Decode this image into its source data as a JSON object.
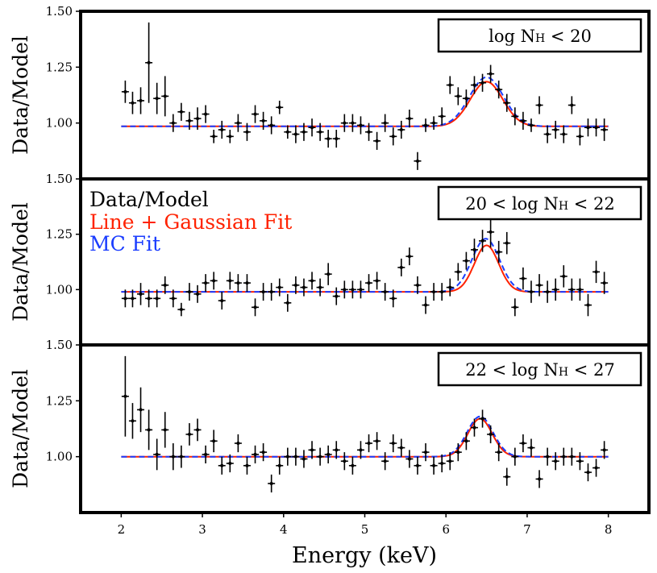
{
  "figure": {
    "xlabel": "Energy (keV)",
    "ylabel": "Data/Model",
    "x_ticks": [
      "2",
      "3",
      "4",
      "5",
      "6",
      "7",
      "8"
    ],
    "xlim": [
      1.5,
      8.5
    ],
    "legend": {
      "placement": "top-left of middle panel",
      "entries": [
        {
          "label": "Data/Model",
          "color": "#000000"
        },
        {
          "label": "Line + Gaussian Fit",
          "color": "#ff2200"
        },
        {
          "label": "MC Fit",
          "color": "#1a3cff"
        }
      ]
    },
    "colors": {
      "data": "#000000",
      "gauss_fit": "#ff2200",
      "mc_fit": "#1a3cff"
    }
  },
  "chart_data": [
    {
      "type": "scatter",
      "panel": "top",
      "title": "log N_H < 20",
      "label_parts": {
        "pre": "log N",
        "sub": "H",
        "post": " < 20"
      },
      "ylabel": "Data/Model",
      "y_ticks": [
        "1.00",
        "1.25",
        "1.50"
      ],
      "ylim": [
        0.75,
        1.5
      ],
      "gauss_fit": {
        "baseline": 0.985,
        "amp": 0.2,
        "center": 6.5,
        "sigma": 0.2
      },
      "mc_fit": {
        "baseline": 0.985,
        "amp": 0.22,
        "center": 6.5,
        "sigma": 0.21
      },
      "points": [
        {
          "x": 2.05,
          "y": 1.14,
          "yerr": 0.05
        },
        {
          "x": 2.14,
          "y": 1.09,
          "yerr": 0.05
        },
        {
          "x": 2.24,
          "y": 1.1,
          "yerr": 0.06
        },
        {
          "x": 2.34,
          "y": 1.27,
          "yerr": 0.18
        },
        {
          "x": 2.44,
          "y": 1.11,
          "yerr": 0.07
        },
        {
          "x": 2.54,
          "y": 1.12,
          "yerr": 0.09
        },
        {
          "x": 2.64,
          "y": 1.0,
          "yerr": 0.04
        },
        {
          "x": 2.74,
          "y": 1.05,
          "yerr": 0.04
        },
        {
          "x": 2.84,
          "y": 1.01,
          "yerr": 0.04
        },
        {
          "x": 2.94,
          "y": 1.02,
          "yerr": 0.05
        },
        {
          "x": 3.04,
          "y": 1.04,
          "yerr": 0.04
        },
        {
          "x": 3.14,
          "y": 0.94,
          "yerr": 0.03
        },
        {
          "x": 3.24,
          "y": 0.97,
          "yerr": 0.04
        },
        {
          "x": 3.34,
          "y": 0.94,
          "yerr": 0.03
        },
        {
          "x": 3.44,
          "y": 1.0,
          "yerr": 0.04
        },
        {
          "x": 3.55,
          "y": 0.96,
          "yerr": 0.04
        },
        {
          "x": 3.65,
          "y": 1.04,
          "yerr": 0.04
        },
        {
          "x": 3.75,
          "y": 1.01,
          "yerr": 0.04
        },
        {
          "x": 3.85,
          "y": 0.99,
          "yerr": 0.04
        },
        {
          "x": 3.95,
          "y": 1.07,
          "yerr": 0.03
        },
        {
          "x": 4.05,
          "y": 0.96,
          "yerr": 0.03
        },
        {
          "x": 4.15,
          "y": 0.95,
          "yerr": 0.04
        },
        {
          "x": 4.25,
          "y": 0.96,
          "yerr": 0.04
        },
        {
          "x": 4.35,
          "y": 0.98,
          "yerr": 0.04
        },
        {
          "x": 4.45,
          "y": 0.96,
          "yerr": 0.04
        },
        {
          "x": 4.55,
          "y": 0.93,
          "yerr": 0.04
        },
        {
          "x": 4.65,
          "y": 0.93,
          "yerr": 0.04
        },
        {
          "x": 4.75,
          "y": 1.0,
          "yerr": 0.04
        },
        {
          "x": 4.85,
          "y": 1.0,
          "yerr": 0.04
        },
        {
          "x": 4.95,
          "y": 0.99,
          "yerr": 0.04
        },
        {
          "x": 5.05,
          "y": 0.96,
          "yerr": 0.04
        },
        {
          "x": 5.15,
          "y": 0.92,
          "yerr": 0.04
        },
        {
          "x": 5.25,
          "y": 1.0,
          "yerr": 0.04
        },
        {
          "x": 5.35,
          "y": 0.94,
          "yerr": 0.04
        },
        {
          "x": 5.45,
          "y": 0.97,
          "yerr": 0.04
        },
        {
          "x": 5.55,
          "y": 1.02,
          "yerr": 0.04
        },
        {
          "x": 5.65,
          "y": 0.83,
          "yerr": 0.04
        },
        {
          "x": 5.75,
          "y": 0.99,
          "yerr": 0.03
        },
        {
          "x": 5.85,
          "y": 1.0,
          "yerr": 0.03
        },
        {
          "x": 5.95,
          "y": 1.03,
          "yerr": 0.04
        },
        {
          "x": 6.05,
          "y": 1.17,
          "yerr": 0.04
        },
        {
          "x": 6.15,
          "y": 1.12,
          "yerr": 0.04
        },
        {
          "x": 6.25,
          "y": 1.11,
          "yerr": 0.04
        },
        {
          "x": 6.35,
          "y": 1.17,
          "yerr": 0.04
        },
        {
          "x": 6.45,
          "y": 1.18,
          "yerr": 0.04
        },
        {
          "x": 6.55,
          "y": 1.22,
          "yerr": 0.04
        },
        {
          "x": 6.65,
          "y": 1.15,
          "yerr": 0.04
        },
        {
          "x": 6.75,
          "y": 1.09,
          "yerr": 0.04
        },
        {
          "x": 6.85,
          "y": 1.03,
          "yerr": 0.04
        },
        {
          "x": 6.95,
          "y": 1.01,
          "yerr": 0.04
        },
        {
          "x": 7.05,
          "y": 0.99,
          "yerr": 0.03
        },
        {
          "x": 7.15,
          "y": 1.08,
          "yerr": 0.04
        },
        {
          "x": 7.25,
          "y": 0.95,
          "yerr": 0.04
        },
        {
          "x": 7.35,
          "y": 0.97,
          "yerr": 0.04
        },
        {
          "x": 7.45,
          "y": 0.95,
          "yerr": 0.04
        },
        {
          "x": 7.55,
          "y": 1.08,
          "yerr": 0.04
        },
        {
          "x": 7.65,
          "y": 0.94,
          "yerr": 0.04
        },
        {
          "x": 7.75,
          "y": 0.98,
          "yerr": 0.04
        },
        {
          "x": 7.85,
          "y": 0.98,
          "yerr": 0.04
        },
        {
          "x": 7.95,
          "y": 0.97,
          "yerr": 0.05
        }
      ]
    },
    {
      "type": "scatter",
      "panel": "middle",
      "title": "20 < log N_H < 22",
      "label_parts": {
        "pre": "20 < log N",
        "sub": "H",
        "post": " < 22"
      },
      "ylabel": "Data/Model",
      "y_ticks": [
        "1.00",
        "1.25",
        "1.50"
      ],
      "ylim": [
        0.75,
        1.5
      ],
      "gauss_fit": {
        "baseline": 0.99,
        "amp": 0.21,
        "center": 6.5,
        "sigma": 0.15
      },
      "mc_fit": {
        "baseline": 0.99,
        "amp": 0.24,
        "center": 6.49,
        "sigma": 0.17
      },
      "points": [
        {
          "x": 2.05,
          "y": 0.96,
          "yerr": 0.04
        },
        {
          "x": 2.14,
          "y": 0.96,
          "yerr": 0.04
        },
        {
          "x": 2.24,
          "y": 0.98,
          "yerr": 0.05
        },
        {
          "x": 2.34,
          "y": 0.96,
          "yerr": 0.04
        },
        {
          "x": 2.44,
          "y": 0.96,
          "yerr": 0.04
        },
        {
          "x": 2.54,
          "y": 1.02,
          "yerr": 0.04
        },
        {
          "x": 2.64,
          "y": 0.96,
          "yerr": 0.04
        },
        {
          "x": 2.74,
          "y": 0.91,
          "yerr": 0.03
        },
        {
          "x": 2.84,
          "y": 0.99,
          "yerr": 0.04
        },
        {
          "x": 2.94,
          "y": 0.98,
          "yerr": 0.04
        },
        {
          "x": 3.04,
          "y": 1.03,
          "yerr": 0.04
        },
        {
          "x": 3.14,
          "y": 1.04,
          "yerr": 0.04
        },
        {
          "x": 3.24,
          "y": 0.95,
          "yerr": 0.04
        },
        {
          "x": 3.34,
          "y": 1.04,
          "yerr": 0.04
        },
        {
          "x": 3.44,
          "y": 1.03,
          "yerr": 0.04
        },
        {
          "x": 3.55,
          "y": 1.03,
          "yerr": 0.04
        },
        {
          "x": 3.65,
          "y": 0.92,
          "yerr": 0.04
        },
        {
          "x": 3.75,
          "y": 0.99,
          "yerr": 0.04
        },
        {
          "x": 3.85,
          "y": 0.99,
          "yerr": 0.04
        },
        {
          "x": 3.95,
          "y": 1.01,
          "yerr": 0.04
        },
        {
          "x": 4.05,
          "y": 0.94,
          "yerr": 0.04
        },
        {
          "x": 4.15,
          "y": 1.02,
          "yerr": 0.04
        },
        {
          "x": 4.25,
          "y": 1.01,
          "yerr": 0.04
        },
        {
          "x": 4.35,
          "y": 1.04,
          "yerr": 0.04
        },
        {
          "x": 4.45,
          "y": 1.01,
          "yerr": 0.04
        },
        {
          "x": 4.55,
          "y": 1.07,
          "yerr": 0.05
        },
        {
          "x": 4.65,
          "y": 0.97,
          "yerr": 0.04
        },
        {
          "x": 4.75,
          "y": 1.0,
          "yerr": 0.04
        },
        {
          "x": 4.85,
          "y": 1.0,
          "yerr": 0.04
        },
        {
          "x": 4.95,
          "y": 1.0,
          "yerr": 0.04
        },
        {
          "x": 5.05,
          "y": 1.03,
          "yerr": 0.04
        },
        {
          "x": 5.15,
          "y": 1.04,
          "yerr": 0.04
        },
        {
          "x": 5.25,
          "y": 0.99,
          "yerr": 0.04
        },
        {
          "x": 5.35,
          "y": 0.96,
          "yerr": 0.04
        },
        {
          "x": 5.45,
          "y": 1.1,
          "yerr": 0.04
        },
        {
          "x": 5.55,
          "y": 1.15,
          "yerr": 0.04
        },
        {
          "x": 5.65,
          "y": 1.02,
          "yerr": 0.04
        },
        {
          "x": 5.75,
          "y": 0.93,
          "yerr": 0.04
        },
        {
          "x": 5.85,
          "y": 0.99,
          "yerr": 0.04
        },
        {
          "x": 5.95,
          "y": 0.99,
          "yerr": 0.04
        },
        {
          "x": 6.05,
          "y": 1.01,
          "yerr": 0.04
        },
        {
          "x": 6.15,
          "y": 1.08,
          "yerr": 0.04
        },
        {
          "x": 6.25,
          "y": 1.13,
          "yerr": 0.04
        },
        {
          "x": 6.35,
          "y": 1.18,
          "yerr": 0.05
        },
        {
          "x": 6.45,
          "y": 1.22,
          "yerr": 0.05
        },
        {
          "x": 6.55,
          "y": 1.26,
          "yerr": 0.07
        },
        {
          "x": 6.65,
          "y": 1.17,
          "yerr": 0.05
        },
        {
          "x": 6.75,
          "y": 1.21,
          "yerr": 0.05
        },
        {
          "x": 6.85,
          "y": 0.92,
          "yerr": 0.04
        },
        {
          "x": 6.95,
          "y": 1.05,
          "yerr": 0.05
        },
        {
          "x": 7.05,
          "y": 0.99,
          "yerr": 0.05
        },
        {
          "x": 7.15,
          "y": 1.02,
          "yerr": 0.05
        },
        {
          "x": 7.25,
          "y": 0.99,
          "yerr": 0.05
        },
        {
          "x": 7.35,
          "y": 1.0,
          "yerr": 0.05
        },
        {
          "x": 7.45,
          "y": 1.06,
          "yerr": 0.05
        },
        {
          "x": 7.55,
          "y": 1.0,
          "yerr": 0.05
        },
        {
          "x": 7.65,
          "y": 1.0,
          "yerr": 0.05
        },
        {
          "x": 7.75,
          "y": 0.93,
          "yerr": 0.05
        },
        {
          "x": 7.85,
          "y": 1.08,
          "yerr": 0.05
        },
        {
          "x": 7.95,
          "y": 1.03,
          "yerr": 0.05
        }
      ]
    },
    {
      "type": "scatter",
      "panel": "bottom",
      "title": "22 < log N_H < 27",
      "label_parts": {
        "pre": "22 < log N",
        "sub": "H",
        "post": " < 27"
      },
      "ylabel": "Data/Model",
      "y_ticks": [
        "1.00",
        "1.25",
        "1.50"
      ],
      "ylim": [
        0.75,
        1.5
      ],
      "gauss_fit": {
        "baseline": 1.0,
        "amp": 0.17,
        "center": 6.42,
        "sigma": 0.15
      },
      "mc_fit": {
        "baseline": 1.0,
        "amp": 0.18,
        "center": 6.42,
        "sigma": 0.16
      },
      "points": [
        {
          "x": 2.05,
          "y": 1.27,
          "yerr": 0.18
        },
        {
          "x": 2.14,
          "y": 1.16,
          "yerr": 0.08
        },
        {
          "x": 2.24,
          "y": 1.21,
          "yerr": 0.1
        },
        {
          "x": 2.34,
          "y": 1.12,
          "yerr": 0.09
        },
        {
          "x": 2.44,
          "y": 1.01,
          "yerr": 0.07
        },
        {
          "x": 2.54,
          "y": 1.12,
          "yerr": 0.08
        },
        {
          "x": 2.64,
          "y": 1.0,
          "yerr": 0.06
        },
        {
          "x": 2.74,
          "y": 1.0,
          "yerr": 0.05
        },
        {
          "x": 2.84,
          "y": 1.1,
          "yerr": 0.05
        },
        {
          "x": 2.94,
          "y": 1.12,
          "yerr": 0.05
        },
        {
          "x": 3.04,
          "y": 1.01,
          "yerr": 0.04
        },
        {
          "x": 3.14,
          "y": 1.07,
          "yerr": 0.05
        },
        {
          "x": 3.24,
          "y": 0.96,
          "yerr": 0.04
        },
        {
          "x": 3.34,
          "y": 0.97,
          "yerr": 0.04
        },
        {
          "x": 3.44,
          "y": 1.06,
          "yerr": 0.04
        },
        {
          "x": 3.55,
          "y": 0.96,
          "yerr": 0.04
        },
        {
          "x": 3.65,
          "y": 1.01,
          "yerr": 0.04
        },
        {
          "x": 3.75,
          "y": 1.02,
          "yerr": 0.04
        },
        {
          "x": 3.85,
          "y": 0.88,
          "yerr": 0.04
        },
        {
          "x": 3.95,
          "y": 0.96,
          "yerr": 0.04
        },
        {
          "x": 4.05,
          "y": 1.0,
          "yerr": 0.04
        },
        {
          "x": 4.15,
          "y": 1.0,
          "yerr": 0.04
        },
        {
          "x": 4.25,
          "y": 0.99,
          "yerr": 0.04
        },
        {
          "x": 4.35,
          "y": 1.03,
          "yerr": 0.04
        },
        {
          "x": 4.45,
          "y": 1.0,
          "yerr": 0.04
        },
        {
          "x": 4.55,
          "y": 1.01,
          "yerr": 0.04
        },
        {
          "x": 4.65,
          "y": 1.03,
          "yerr": 0.04
        },
        {
          "x": 4.75,
          "y": 0.98,
          "yerr": 0.04
        },
        {
          "x": 4.85,
          "y": 0.96,
          "yerr": 0.04
        },
        {
          "x": 4.95,
          "y": 1.03,
          "yerr": 0.04
        },
        {
          "x": 5.05,
          "y": 1.06,
          "yerr": 0.04
        },
        {
          "x": 5.15,
          "y": 1.07,
          "yerr": 0.04
        },
        {
          "x": 5.25,
          "y": 0.98,
          "yerr": 0.04
        },
        {
          "x": 5.35,
          "y": 1.06,
          "yerr": 0.04
        },
        {
          "x": 5.45,
          "y": 1.04,
          "yerr": 0.04
        },
        {
          "x": 5.55,
          "y": 0.99,
          "yerr": 0.04
        },
        {
          "x": 5.65,
          "y": 0.96,
          "yerr": 0.04
        },
        {
          "x": 5.75,
          "y": 1.02,
          "yerr": 0.04
        },
        {
          "x": 5.85,
          "y": 0.96,
          "yerr": 0.04
        },
        {
          "x": 5.95,
          "y": 0.97,
          "yerr": 0.04
        },
        {
          "x": 6.05,
          "y": 0.98,
          "yerr": 0.04
        },
        {
          "x": 6.15,
          "y": 1.02,
          "yerr": 0.04
        },
        {
          "x": 6.25,
          "y": 1.07,
          "yerr": 0.04
        },
        {
          "x": 6.35,
          "y": 1.13,
          "yerr": 0.04
        },
        {
          "x": 6.45,
          "y": 1.17,
          "yerr": 0.04
        },
        {
          "x": 6.55,
          "y": 1.1,
          "yerr": 0.04
        },
        {
          "x": 6.65,
          "y": 1.02,
          "yerr": 0.04
        },
        {
          "x": 6.75,
          "y": 0.91,
          "yerr": 0.04
        },
        {
          "x": 6.85,
          "y": 1.0,
          "yerr": 0.04
        },
        {
          "x": 6.95,
          "y": 1.06,
          "yerr": 0.04
        },
        {
          "x": 7.05,
          "y": 1.04,
          "yerr": 0.04
        },
        {
          "x": 7.15,
          "y": 0.9,
          "yerr": 0.04
        },
        {
          "x": 7.25,
          "y": 1.0,
          "yerr": 0.04
        },
        {
          "x": 7.35,
          "y": 0.98,
          "yerr": 0.04
        },
        {
          "x": 7.45,
          "y": 1.0,
          "yerr": 0.04
        },
        {
          "x": 7.55,
          "y": 1.0,
          "yerr": 0.04
        },
        {
          "x": 7.65,
          "y": 0.98,
          "yerr": 0.04
        },
        {
          "x": 7.75,
          "y": 0.93,
          "yerr": 0.04
        },
        {
          "x": 7.85,
          "y": 0.95,
          "yerr": 0.04
        },
        {
          "x": 7.95,
          "y": 1.03,
          "yerr": 0.04
        }
      ]
    }
  ]
}
